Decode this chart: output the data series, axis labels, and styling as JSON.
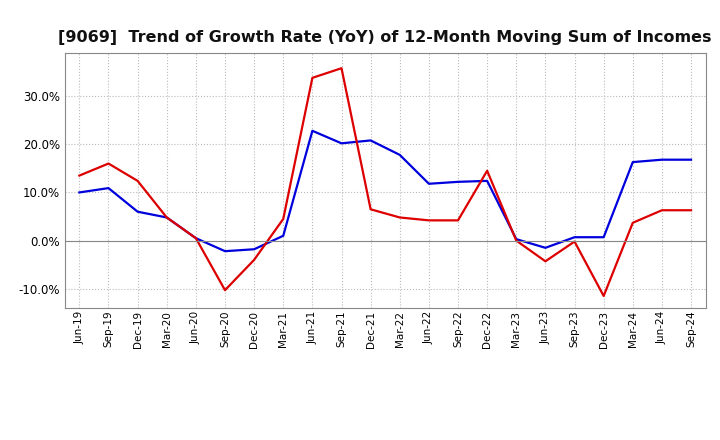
{
  "title": "[9069]  Trend of Growth Rate (YoY) of 12-Month Moving Sum of Incomes",
  "x_labels": [
    "Jun-19",
    "Sep-19",
    "Dec-19",
    "Mar-20",
    "Jun-20",
    "Sep-20",
    "Dec-20",
    "Mar-21",
    "Jun-21",
    "Sep-21",
    "Dec-21",
    "Mar-22",
    "Jun-22",
    "Sep-22",
    "Dec-22",
    "Mar-23",
    "Jun-23",
    "Sep-23",
    "Dec-23",
    "Mar-24",
    "Jun-24",
    "Sep-24"
  ],
  "ordinary_income": [
    0.1,
    0.109,
    0.06,
    0.048,
    0.005,
    -0.022,
    -0.018,
    0.01,
    0.228,
    0.202,
    0.208,
    0.178,
    0.118,
    0.122,
    0.124,
    0.003,
    -0.015,
    0.007,
    0.007,
    0.163,
    0.168,
    0.168
  ],
  "net_income": [
    0.135,
    0.16,
    0.124,
    0.048,
    0.005,
    -0.103,
    -0.04,
    0.045,
    0.338,
    0.358,
    0.065,
    0.048,
    0.042,
    0.042,
    0.145,
    0.0,
    -0.043,
    -0.002,
    -0.115,
    0.037,
    0.063,
    0.063
  ],
  "ordinary_color": "#0000dd",
  "net_color": "#dd0000",
  "background_color": "#ffffff",
  "grid_color": "#bbbbbb",
  "ylim": [
    -0.14,
    0.39
  ],
  "yticks": [
    -0.1,
    0.0,
    0.1,
    0.2,
    0.3
  ],
  "title_fontsize": 11.5,
  "line_width": 1.6
}
